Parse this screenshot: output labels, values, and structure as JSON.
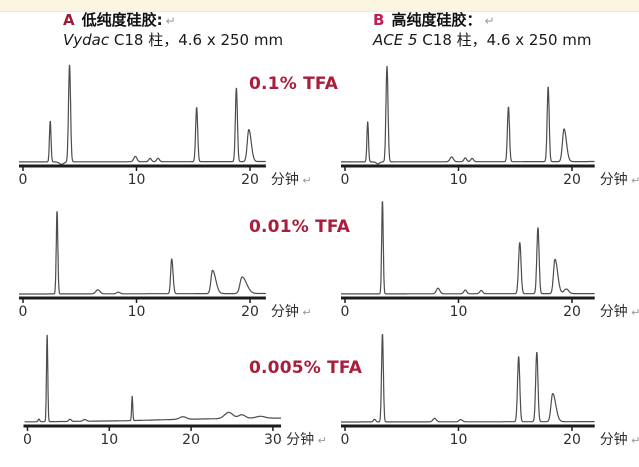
{
  "page": {
    "background": "#ffffff",
    "top_band_color": "#FBF5E1",
    "return_mark": "↵"
  },
  "colors": {
    "accent_a": "#9E1B38",
    "accent_b": "#C41E58",
    "tfa": "#A81E3C",
    "curve": "#4d4d4d",
    "axis": "#1c1c1c",
    "tick": "#2e2e2e",
    "return_mark": "#9a9a9a"
  },
  "panels": [
    {
      "letter": "A",
      "title": "低纯度硅胶:",
      "return_mark": "↵",
      "column_line": {
        "name": "Vydac",
        "rest": " C18 柱，4.6 x 250 mm"
      }
    },
    {
      "letter": "B",
      "title": "高纯度硅胶：",
      "return_mark": "↵",
      "column_line": {
        "name": "ACE 5",
        "rest": " C18 柱，4.6 x 250 mm"
      }
    }
  ],
  "rows": [
    {
      "tfa": "0.1% TFA"
    },
    {
      "tfa": "0.01% TFA"
    },
    {
      "tfa": "0.005% TFA"
    }
  ],
  "chart_data": {
    "type": "line",
    "unit_label": "分钟",
    "peak_format": "[retention_time_min, relative_height_0to1, sigma_min, optional_right_tail_factor]",
    "plots": [
      {
        "id": "a1",
        "panel": "A",
        "condition": "0.1% TFA",
        "x_end": 21.4,
        "ticks": [
          0,
          10,
          20
        ],
        "unit": "分钟",
        "peaks": [
          [
            2.4,
            0.42,
            0.07
          ],
          [
            3.4,
            -0.025,
            0.2
          ],
          [
            4.1,
            1.0,
            0.09
          ],
          [
            9.9,
            0.055,
            0.14
          ],
          [
            11.2,
            0.035,
            0.12
          ],
          [
            11.9,
            0.035,
            0.12
          ],
          [
            15.3,
            0.56,
            0.09
          ],
          [
            18.8,
            0.76,
            0.09
          ],
          [
            19.9,
            0.33,
            0.14,
            1.5
          ]
        ],
        "drift": [
          [
            0,
            0.006
          ],
          [
            21.4,
            0.01
          ]
        ]
      },
      {
        "id": "b1",
        "panel": "B",
        "condition": "0.1% TFA",
        "x_end": 22.0,
        "ticks": [
          0,
          10,
          20
        ],
        "unit": "分钟",
        "peaks": [
          [
            2.0,
            0.42,
            0.07
          ],
          [
            2.9,
            -0.02,
            0.15
          ],
          [
            3.7,
            1.0,
            0.09
          ],
          [
            9.4,
            0.05,
            0.15
          ],
          [
            10.6,
            0.04,
            0.12
          ],
          [
            11.2,
            0.035,
            0.12
          ],
          [
            14.4,
            0.57,
            0.09
          ],
          [
            17.9,
            0.78,
            0.09
          ],
          [
            19.3,
            0.34,
            0.14,
            1.5
          ]
        ],
        "drift": [
          [
            0,
            0.006
          ],
          [
            22,
            0.01
          ]
        ]
      },
      {
        "id": "a2",
        "panel": "A",
        "condition": "0.01% TFA",
        "x_end": 21.4,
        "ticks": [
          0,
          10,
          20
        ],
        "unit": "分钟",
        "peaks": [
          [
            3.0,
            1.0,
            0.07
          ],
          [
            6.6,
            0.05,
            0.18
          ],
          [
            8.4,
            0.02,
            0.15
          ],
          [
            13.1,
            0.42,
            0.09,
            1.3
          ],
          [
            16.7,
            0.28,
            0.14,
            2.0
          ],
          [
            19.3,
            0.2,
            0.18,
            2.2
          ]
        ],
        "drift": [
          [
            0,
            0.006
          ],
          [
            21.4,
            0.012
          ]
        ]
      },
      {
        "id": "b2",
        "panel": "B",
        "condition": "0.01% TFA",
        "x_end": 22.0,
        "ticks": [
          0,
          10,
          20
        ],
        "unit": "分钟",
        "peaks": [
          [
            3.3,
            1.0,
            0.07
          ],
          [
            8.2,
            0.06,
            0.15
          ],
          [
            10.6,
            0.04,
            0.13
          ],
          [
            12.0,
            0.035,
            0.13
          ],
          [
            15.4,
            0.55,
            0.11
          ],
          [
            17.0,
            0.71,
            0.1
          ],
          [
            18.5,
            0.37,
            0.13,
            1.8
          ],
          [
            19.5,
            0.05,
            0.2
          ]
        ],
        "drift": [
          [
            0,
            0.006
          ],
          [
            22,
            0.01
          ]
        ]
      },
      {
        "id": "a3",
        "panel": "A",
        "condition": "0.005% TFA",
        "x_end": 31.0,
        "ticks": [
          0,
          10,
          20,
          30
        ],
        "unit": "分钟",
        "peaks": [
          [
            1.4,
            0.03,
            0.1
          ],
          [
            2.4,
            1.0,
            0.08
          ],
          [
            5.2,
            0.025,
            0.15
          ],
          [
            7.0,
            0.02,
            0.2
          ],
          [
            12.8,
            0.28,
            0.07
          ],
          [
            19.0,
            0.03,
            0.4
          ],
          [
            24.6,
            0.07,
            0.5
          ],
          [
            26.2,
            0.04,
            0.4
          ],
          [
            28.5,
            0.02,
            0.5
          ]
        ],
        "drift": [
          [
            0,
            0.008
          ],
          [
            3,
            0.01
          ],
          [
            12,
            0.02
          ],
          [
            18,
            0.035
          ],
          [
            24,
            0.045
          ],
          [
            28,
            0.052
          ],
          [
            31,
            0.05
          ]
        ]
      },
      {
        "id": "b3",
        "panel": "B",
        "condition": "0.005% TFA",
        "x_end": 22.0,
        "ticks": [
          0,
          10,
          20
        ],
        "unit": "分钟",
        "peaks": [
          [
            2.6,
            0.03,
            0.1
          ],
          [
            3.3,
            1.0,
            0.08
          ],
          [
            7.9,
            0.04,
            0.15
          ],
          [
            10.2,
            0.025,
            0.15
          ],
          [
            15.3,
            0.74,
            0.1
          ],
          [
            16.9,
            0.79,
            0.1
          ],
          [
            18.3,
            0.32,
            0.15,
            1.8
          ]
        ],
        "drift": [
          [
            0,
            0.006
          ],
          [
            22,
            0.01
          ]
        ]
      }
    ]
  }
}
